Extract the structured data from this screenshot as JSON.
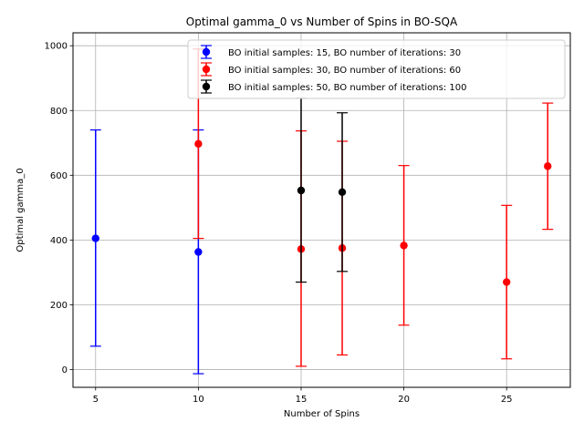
{
  "chart_data": {
    "type": "scatter",
    "title": "Optimal gamma_0 vs Number of Spins in BO-SQA",
    "xlabel": "Number of Spins",
    "ylabel": "Optimal gamma_0",
    "xlim": [
      3.9,
      28.1
    ],
    "ylim": [
      -55,
      1040
    ],
    "xticks": [
      5,
      10,
      15,
      20,
      25
    ],
    "yticks": [
      0,
      200,
      400,
      600,
      800,
      1000
    ],
    "grid": true,
    "legend_position": "top-right",
    "series": [
      {
        "name": "BO initial samples: 15, BO number of iterations: 30",
        "color": "#0000ff",
        "points": [
          {
            "x": 5,
            "y": 405,
            "ylow": 72,
            "yhigh": 740
          },
          {
            "x": 10,
            "y": 363,
            "ylow": -13,
            "yhigh": 740
          }
        ]
      },
      {
        "name": "BO initial samples: 30, BO number of iterations: 60",
        "color": "#ff0000",
        "points": [
          {
            "x": 10,
            "y": 697,
            "ylow": 405,
            "yhigh": 990
          },
          {
            "x": 15,
            "y": 372,
            "ylow": 10,
            "yhigh": 737
          },
          {
            "x": 17,
            "y": 375,
            "ylow": 45,
            "yhigh": 705
          },
          {
            "x": 20,
            "y": 383,
            "ylow": 137,
            "yhigh": 630
          },
          {
            "x": 25,
            "y": 270,
            "ylow": 33,
            "yhigh": 507
          },
          {
            "x": 27,
            "y": 628,
            "ylow": 433,
            "yhigh": 823
          }
        ]
      },
      {
        "name": "BO initial samples: 50, BO number of iterations: 100",
        "color": "#000000",
        "points": [
          {
            "x": 15,
            "y": 553,
            "ylow": 270,
            "yhigh": 838
          },
          {
            "x": 17,
            "y": 548,
            "ylow": 303,
            "yhigh": 793
          }
        ]
      }
    ]
  }
}
